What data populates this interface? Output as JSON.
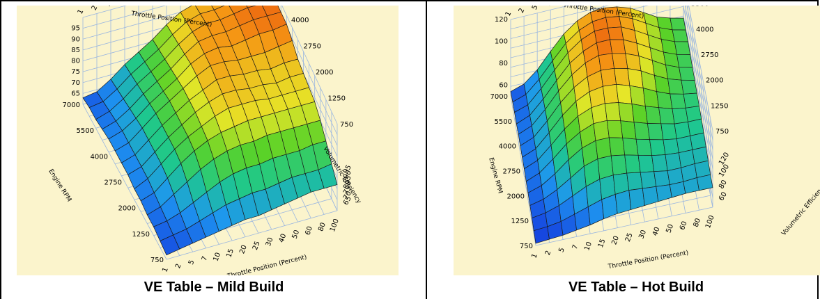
{
  "chart_data": [
    {
      "type": "surface3d",
      "caption": "VE Table – Mild Build",
      "x_axis": {
        "label": "Throttle Position (Percent)",
        "ticks": [
          1,
          2,
          5,
          7,
          10,
          15,
          20,
          25,
          30,
          40,
          50,
          60,
          80,
          100
        ]
      },
      "y_axis": {
        "label": "Engine RPM",
        "ticks": [
          750,
          1250,
          2000,
          2750,
          4000,
          5500,
          7000
        ]
      },
      "z_axis": {
        "label": "Volumetric Efficiency",
        "ticks": [
          65,
          70,
          75,
          80,
          85,
          90,
          95
        ],
        "range": [
          60,
          100
        ]
      },
      "values": [
        [
          62,
          63,
          64,
          65,
          66,
          67,
          68,
          68,
          69,
          70,
          71,
          72,
          72,
          72
        ],
        [
          63,
          64,
          65,
          67,
          69,
          71,
          72,
          73,
          73,
          74,
          75,
          75,
          75,
          76
        ],
        [
          64,
          65,
          67,
          70,
          73,
          76,
          78,
          79,
          79,
          80,
          80,
          80,
          81,
          81
        ],
        [
          64,
          66,
          70,
          74,
          78,
          81,
          83,
          84,
          84,
          85,
          85,
          85,
          85,
          85
        ],
        [
          65,
          67,
          72,
          77,
          81,
          84,
          86,
          87,
          88,
          88,
          88,
          88,
          88,
          88
        ],
        [
          65,
          68,
          73,
          78,
          82,
          85,
          88,
          90,
          90,
          90,
          89,
          89,
          89,
          89
        ],
        [
          66,
          68,
          73,
          78,
          82,
          86,
          89,
          91,
          91,
          90,
          90,
          89,
          90,
          90
        ],
        [
          66,
          68,
          73,
          78,
          82,
          86,
          89,
          92,
          92,
          91,
          91,
          90,
          91,
          91
        ],
        [
          66,
          68,
          73,
          78,
          82,
          86,
          90,
          93,
          93,
          92,
          92,
          92,
          93,
          94
        ],
        [
          66,
          68,
          72,
          77,
          81,
          85,
          90,
          93,
          94,
          93,
          94,
          95,
          95,
          96
        ],
        [
          65,
          67,
          71,
          76,
          80,
          84,
          89,
          93,
          94,
          94,
          95,
          96,
          96,
          96
        ],
        [
          64,
          66,
          70,
          75,
          79,
          83,
          88,
          92,
          94,
          94,
          95,
          96,
          96,
          96
        ],
        [
          64,
          65,
          69,
          74,
          78,
          82,
          87,
          91,
          93,
          93,
          94,
          95,
          95,
          94
        ],
        [
          63,
          64,
          68,
          73,
          77,
          81,
          86,
          90,
          92,
          92,
          93,
          94,
          93,
          92
        ]
      ],
      "grid": true
    },
    {
      "type": "surface3d",
      "caption": "VE Table – Hot Build",
      "x_axis": {
        "label": "Throttle Position (Percent)",
        "ticks": [
          1,
          2,
          5,
          7,
          10,
          15,
          20,
          25,
          30,
          40,
          50,
          60,
          80,
          100
        ]
      },
      "y_axis": {
        "label": "Engine RPM",
        "ticks": [
          750,
          1250,
          2000,
          2750,
          4000,
          5500,
          7000
        ]
      },
      "z_axis": {
        "label": "Volumetric Efficiency",
        "ticks": [
          60,
          80,
          100,
          120
        ],
        "range": [
          50,
          120
        ]
      },
      "values": [
        [
          52,
          53,
          54,
          56,
          58,
          61,
          63,
          64,
          65,
          66,
          67,
          68,
          68,
          68
        ],
        [
          53,
          54,
          56,
          60,
          64,
          68,
          70,
          71,
          70,
          69,
          68,
          68,
          69,
          69
        ],
        [
          54,
          56,
          60,
          66,
          72,
          76,
          77,
          76,
          74,
          72,
          70,
          70,
          71,
          71
        ],
        [
          55,
          58,
          64,
          72,
          80,
          84,
          84,
          82,
          79,
          76,
          74,
          73,
          73,
          73
        ],
        [
          56,
          60,
          68,
          78,
          86,
          90,
          90,
          87,
          83,
          80,
          77,
          75,
          75,
          75
        ],
        [
          56,
          61,
          71,
          82,
          90,
          95,
          95,
          92,
          88,
          84,
          81,
          78,
          77,
          77
        ],
        [
          57,
          62,
          73,
          85,
          94,
          99,
          100,
          98,
          94,
          89,
          85,
          81,
          79,
          78
        ],
        [
          57,
          62,
          74,
          87,
          97,
          103,
          105,
          104,
          100,
          95,
          89,
          84,
          81,
          79
        ],
        [
          57,
          62,
          74,
          88,
          99,
          106,
          109,
          108,
          105,
          100,
          93,
          87,
          83,
          80
        ],
        [
          57,
          62,
          74,
          88,
          100,
          108,
          112,
          111,
          108,
          103,
          96,
          89,
          84,
          81
        ],
        [
          56,
          61,
          73,
          87,
          100,
          108,
          113,
          113,
          110,
          104,
          97,
          90,
          85,
          82
        ],
        [
          56,
          60,
          72,
          86,
          99,
          108,
          113,
          113,
          111,
          105,
          98,
          91,
          86,
          83
        ],
        [
          55,
          59,
          70,
          84,
          97,
          106,
          111,
          112,
          110,
          105,
          98,
          91,
          86,
          83
        ],
        [
          54,
          58,
          68,
          82,
          95,
          104,
          109,
          110,
          108,
          104,
          97,
          90,
          86,
          83
        ]
      ],
      "grid": true
    }
  ]
}
